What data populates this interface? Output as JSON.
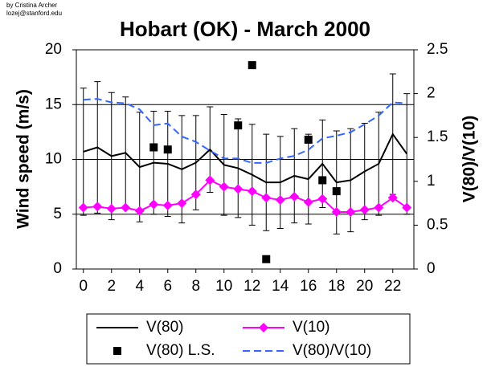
{
  "credit": [
    "by Cristina Archer",
    "lozej@stanford.edu"
  ],
  "chart_data": {
    "type": "line",
    "title": "Hobart (OK) - March 2000",
    "y_label": "Wind speed (m/s)",
    "y2_label": "V(80)/V(10)",
    "x": [
      0,
      1,
      2,
      3,
      4,
      5,
      6,
      7,
      8,
      9,
      10,
      11,
      12,
      13,
      14,
      15,
      16,
      17,
      18,
      19,
      20,
      21,
      22,
      23
    ],
    "xlim": [
      -0.5,
      23.5
    ],
    "xticks": [
      0,
      2,
      4,
      6,
      8,
      10,
      12,
      14,
      16,
      18,
      20,
      22
    ],
    "ylim": [
      0,
      20
    ],
    "yticks": [
      0,
      5,
      10,
      15,
      20
    ],
    "y2lim": [
      0,
      2.5
    ],
    "y2ticks": [
      0,
      0.5,
      1,
      1.5,
      2,
      2.5
    ],
    "grid": true,
    "series": [
      {
        "name": "V(80)",
        "color": "#000000",
        "line": "solid",
        "marker": "none",
        "values": [
          10.7,
          11.1,
          10.3,
          10.6,
          9.3,
          9.7,
          9.6,
          9.1,
          9.7,
          10.9,
          9.5,
          9.2,
          8.6,
          7.9,
          7.9,
          8.5,
          8.2,
          9.6,
          7.9,
          8.1,
          8.9,
          9.6,
          12.3,
          10.5
        ],
        "errors": [
          5.8,
          6.0,
          5.8,
          5.1,
          5.0,
          4.7,
          4.8,
          4.9,
          4.3,
          3.9,
          4.6,
          4.5,
          4.6,
          4.4,
          4.2,
          4.3,
          4.1,
          4.0,
          4.7,
          4.7,
          4.4,
          4.7,
          5.5,
          5.5
        ]
      },
      {
        "name": "V(10)",
        "color": "#ff00ff",
        "line": "solid",
        "marker": "diamond",
        "values": [
          5.6,
          5.7,
          5.5,
          5.6,
          5.3,
          5.9,
          5.8,
          6.0,
          6.8,
          8.1,
          7.5,
          7.3,
          7.1,
          6.5,
          6.3,
          6.6,
          6.1,
          6.4,
          5.2,
          5.2,
          5.4,
          5.6,
          6.5,
          5.6
        ]
      },
      {
        "name": "V(80) L.S.",
        "color": "#000000",
        "line": "none",
        "marker": "square",
        "values": [
          null,
          null,
          null,
          null,
          null,
          11.1,
          10.9,
          null,
          null,
          null,
          null,
          13.1,
          18.6,
          0.9,
          null,
          null,
          11.8,
          8.1,
          7.1,
          null,
          null,
          null,
          null,
          null
        ]
      },
      {
        "name": "V(80)/V(10)",
        "color": "#3366ff",
        "line": "dashed",
        "marker": "none",
        "axis": "y2",
        "values": [
          1.93,
          1.94,
          1.9,
          1.89,
          1.82,
          1.64,
          1.66,
          1.51,
          1.45,
          1.35,
          1.26,
          1.26,
          1.21,
          1.21,
          1.26,
          1.29,
          1.36,
          1.49,
          1.52,
          1.56,
          1.65,
          1.75,
          1.9,
          1.89
        ]
      }
    ]
  }
}
